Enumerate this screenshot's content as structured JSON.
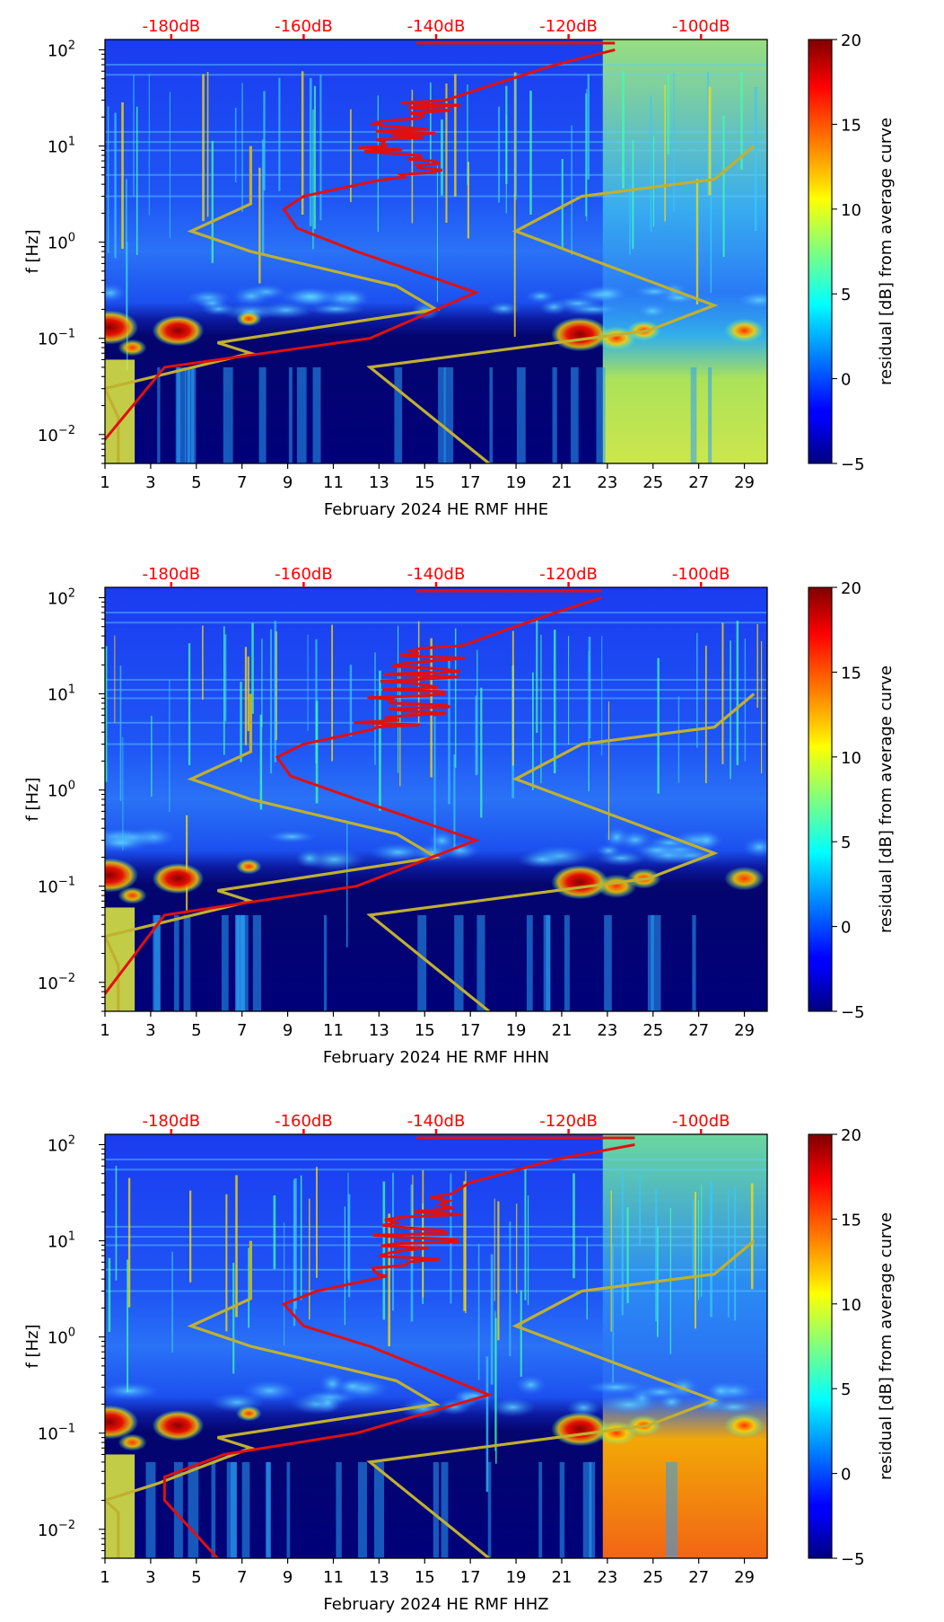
{
  "chart_data": [
    {
      "type": "heatmap",
      "channel": "HHE",
      "xlabel": "February 2024 HE RMF  HHE",
      "ylabel": "f [Hz]",
      "x_ticks": [
        "1",
        "3",
        "5",
        "7",
        "9",
        "11",
        "13",
        "15",
        "17",
        "19",
        "21",
        "23",
        "25",
        "27",
        "29"
      ],
      "x_range": [
        1,
        30
      ],
      "y_scale": "log",
      "y_range": [
        0.005,
        128
      ],
      "y_ticks": [
        {
          "base": "10",
          "exp": "−2",
          "value": 0.01
        },
        {
          "base": "10",
          "exp": "−1",
          "value": 0.1
        },
        {
          "base": "10",
          "exp": "0",
          "value": 1
        },
        {
          "base": "10",
          "exp": "1",
          "value": 10
        },
        {
          "base": "10",
          "exp": "2",
          "value": 100
        }
      ],
      "top_axis": {
        "labels": [
          "-180dB",
          "-160dB",
          "-140dB",
          "-120dB",
          "-100dB"
        ],
        "values": [
          -180,
          -160,
          -140,
          -120,
          -100
        ],
        "range": [
          -190,
          -90
        ],
        "color": "#ff0000"
      },
      "colorbar": {
        "label": "residual [dB] from average curve",
        "range": [
          -5,
          20
        ],
        "ticks": [
          "−5",
          "0",
          "5",
          "10",
          "15",
          "20"
        ],
        "colormap": "jet"
      },
      "bright_block": {
        "x_start": 22.8,
        "x_end": 30,
        "level": "high"
      },
      "average_curve": {
        "color": "#e01010",
        "points_db_hz": [
          [
            -193,
            0.005
          ],
          [
            -181,
            0.05
          ],
          [
            -150,
            0.1
          ],
          [
            -134,
            0.3
          ],
          [
            -152,
            0.8
          ],
          [
            -161,
            1.4
          ],
          [
            -163,
            2.2
          ],
          [
            -160,
            3
          ],
          [
            -148,
            4.5
          ],
          [
            -142,
            7
          ],
          [
            -146,
            10
          ],
          [
            -144,
            15
          ],
          [
            -142,
            25
          ],
          [
            -133,
            40
          ],
          [
            -122,
            70
          ],
          [
            -113,
            100
          ]
        ]
      },
      "model_curves": {
        "color": "#c0b030",
        "low": [
          [
            -188,
            0.005
          ],
          [
            -188,
            0.015
          ],
          [
            -190,
            0.03
          ],
          [
            -168,
            0.07
          ],
          [
            -173,
            0.09
          ],
          [
            -140,
            0.2
          ],
          [
            -146,
            0.35
          ],
          [
            -168,
            0.8
          ],
          [
            -177,
            1.3
          ],
          [
            -168,
            2.5
          ],
          [
            -168,
            7
          ],
          [
            -168,
            10
          ]
        ],
        "high": [
          [
            -132,
            0.005
          ],
          [
            -150,
            0.05
          ],
          [
            -108,
            0.12
          ],
          [
            -98,
            0.22
          ],
          [
            -128,
            1.3
          ],
          [
            -118,
            3
          ],
          [
            -98,
            4.5
          ],
          [
            -92,
            10
          ]
        ]
      }
    },
    {
      "type": "heatmap",
      "channel": "HHN",
      "xlabel": "February 2024 HE RMF  HHN",
      "ylabel": "f [Hz]",
      "x_ticks": [
        "1",
        "3",
        "5",
        "7",
        "9",
        "11",
        "13",
        "15",
        "17",
        "19",
        "21",
        "23",
        "25",
        "27",
        "29"
      ],
      "x_range": [
        1,
        30
      ],
      "y_scale": "log",
      "y_range": [
        0.005,
        128
      ],
      "y_ticks": [
        {
          "base": "10",
          "exp": "−2",
          "value": 0.01
        },
        {
          "base": "10",
          "exp": "−1",
          "value": 0.1
        },
        {
          "base": "10",
          "exp": "0",
          "value": 1
        },
        {
          "base": "10",
          "exp": "1",
          "value": 10
        },
        {
          "base": "10",
          "exp": "2",
          "value": 100
        }
      ],
      "top_axis": {
        "labels": [
          "-180dB",
          "-160dB",
          "-140dB",
          "-120dB",
          "-100dB"
        ],
        "values": [
          -180,
          -160,
          -140,
          -120,
          -100
        ],
        "range": [
          -190,
          -90
        ],
        "color": "#ff0000"
      },
      "colorbar": {
        "label": "residual [dB] from average curve",
        "range": [
          -5,
          20
        ],
        "ticks": [
          "−5",
          "0",
          "5",
          "10",
          "15",
          "20"
        ],
        "colormap": "jet"
      },
      "bright_block": null,
      "average_curve": {
        "color": "#e01010",
        "points_db_hz": [
          [
            -192,
            0.005
          ],
          [
            -181,
            0.05
          ],
          [
            -152,
            0.1
          ],
          [
            -134,
            0.3
          ],
          [
            -152,
            0.8
          ],
          [
            -162,
            1.4
          ],
          [
            -164,
            2.2
          ],
          [
            -160,
            3
          ],
          [
            -148,
            4.5
          ],
          [
            -142,
            7
          ],
          [
            -145,
            10
          ],
          [
            -143,
            15
          ],
          [
            -140,
            25
          ],
          [
            -132,
            40
          ],
          [
            -122,
            70
          ],
          [
            -115,
            100
          ]
        ]
      },
      "model_curves": {
        "color": "#c0b030",
        "low": [
          [
            -188,
            0.005
          ],
          [
            -188,
            0.015
          ],
          [
            -190,
            0.03
          ],
          [
            -168,
            0.07
          ],
          [
            -173,
            0.09
          ],
          [
            -140,
            0.2
          ],
          [
            -146,
            0.35
          ],
          [
            -168,
            0.8
          ],
          [
            -177,
            1.3
          ],
          [
            -168,
            2.5
          ],
          [
            -168,
            7
          ],
          [
            -168,
            10
          ]
        ],
        "high": [
          [
            -132,
            0.005
          ],
          [
            -150,
            0.05
          ],
          [
            -108,
            0.12
          ],
          [
            -98,
            0.22
          ],
          [
            -128,
            1.3
          ],
          [
            -118,
            3
          ],
          [
            -98,
            4.5
          ],
          [
            -92,
            10
          ]
        ]
      }
    },
    {
      "type": "heatmap",
      "channel": "HHZ",
      "xlabel": "February 2024 HE RMF  HHZ",
      "ylabel": "f [Hz]",
      "x_ticks": [
        "1",
        "3",
        "5",
        "7",
        "9",
        "11",
        "13",
        "15",
        "17",
        "19",
        "21",
        "23",
        "25",
        "27",
        "29"
      ],
      "x_range": [
        1,
        30
      ],
      "y_scale": "log",
      "y_range": [
        0.005,
        128
      ],
      "y_ticks": [
        {
          "base": "10",
          "exp": "−2",
          "value": 0.01
        },
        {
          "base": "10",
          "exp": "−1",
          "value": 0.1
        },
        {
          "base": "10",
          "exp": "0",
          "value": 1
        },
        {
          "base": "10",
          "exp": "1",
          "value": 10
        },
        {
          "base": "10",
          "exp": "2",
          "value": 100
        }
      ],
      "top_axis": {
        "labels": [
          "-180dB",
          "-160dB",
          "-140dB",
          "-120dB",
          "-100dB"
        ],
        "values": [
          -180,
          -160,
          -140,
          -120,
          -100
        ],
        "range": [
          -190,
          -90
        ],
        "color": "#ff0000"
      },
      "colorbar": {
        "label": "residual [dB] from average curve",
        "range": [
          -5,
          20
        ],
        "ticks": [
          "−5",
          "0",
          "5",
          "10",
          "15",
          "20"
        ],
        "colormap": "jet"
      },
      "bright_block": {
        "x_start": 22.8,
        "x_end": 30,
        "level": "mixed"
      },
      "average_curve": {
        "color": "#e01010",
        "points_db_hz": [
          [
            -173,
            0.005
          ],
          [
            -181,
            0.02
          ],
          [
            -181,
            0.035
          ],
          [
            -172,
            0.06
          ],
          [
            -152,
            0.1
          ],
          [
            -132,
            0.25
          ],
          [
            -150,
            0.8
          ],
          [
            -160,
            1.3
          ],
          [
            -163,
            2.2
          ],
          [
            -158,
            3
          ],
          [
            -146,
            4.5
          ],
          [
            -141,
            8
          ],
          [
            -144,
            12
          ],
          [
            -142,
            20
          ],
          [
            -135,
            40
          ],
          [
            -122,
            70
          ],
          [
            -110,
            100
          ]
        ]
      },
      "model_curves": {
        "color": "#c0b030",
        "low": [
          [
            -188,
            0.005
          ],
          [
            -188,
            0.015
          ],
          [
            -190,
            0.02
          ],
          [
            -182,
            0.03
          ],
          [
            -168,
            0.07
          ],
          [
            -173,
            0.09
          ],
          [
            -140,
            0.2
          ],
          [
            -146,
            0.35
          ],
          [
            -168,
            0.8
          ],
          [
            -177,
            1.3
          ],
          [
            -168,
            2.5
          ],
          [
            -168,
            7
          ],
          [
            -168,
            10
          ]
        ],
        "high": [
          [
            -132,
            0.005
          ],
          [
            -150,
            0.05
          ],
          [
            -108,
            0.12
          ],
          [
            -98,
            0.22
          ],
          [
            -128,
            1.3
          ],
          [
            -118,
            3
          ],
          [
            -98,
            4.5
          ],
          [
            -92,
            10
          ]
        ]
      }
    }
  ]
}
